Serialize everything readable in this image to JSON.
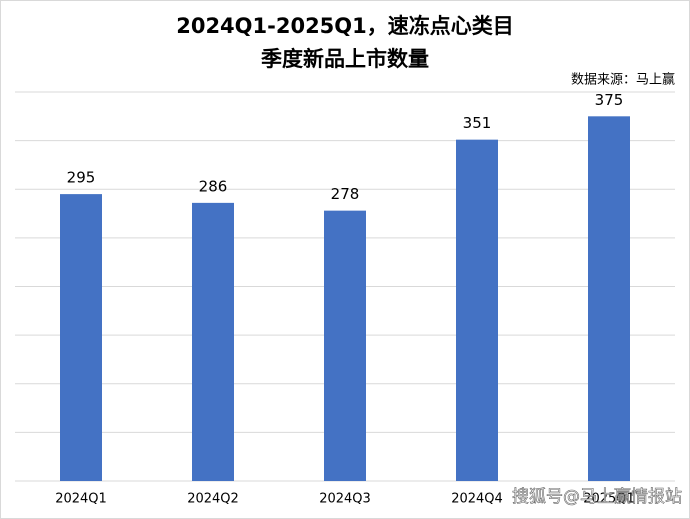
{
  "chart_data": {
    "type": "bar",
    "title": "2024Q1-2025Q1，速冻点心类目",
    "subtitle": "季度新品上市数量",
    "source": "数据来源：马上赢",
    "watermark": "搜狐号@马上赢情报站",
    "categories": [
      "2024Q1",
      "2024Q2",
      "2024Q3",
      "2024Q4",
      "2025Q1"
    ],
    "values": [
      295,
      286,
      278,
      351,
      375
    ],
    "color": "#4472c4",
    "ylim": [
      0,
      400
    ],
    "yticks": [
      0,
      50,
      100,
      150,
      200,
      250,
      300,
      350,
      400
    ],
    "grid": true
  }
}
